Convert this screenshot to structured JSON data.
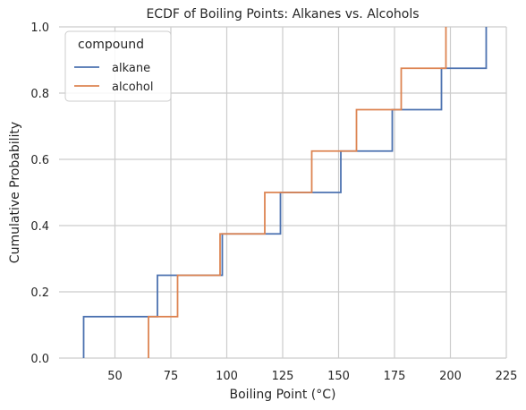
{
  "chart_data": {
    "type": "line",
    "subtype": "ecdf-step",
    "title": "ECDF of Boiling Points: Alkanes vs. Alcohols",
    "xlabel": "Boiling Point (°C)",
    "ylabel": "Cumulative Probability",
    "xlim": [
      25,
      225
    ],
    "ylim": [
      0,
      1
    ],
    "xticks": [
      50,
      75,
      100,
      125,
      150,
      175,
      200,
      225
    ],
    "yticks": [
      0.0,
      0.2,
      0.4,
      0.6,
      0.8,
      1.0
    ],
    "xtick_labels": [
      "50",
      "75",
      "100",
      "125",
      "150",
      "175",
      "200",
      "225"
    ],
    "ytick_labels": [
      "0.0",
      "0.2",
      "0.4",
      "0.6",
      "0.8",
      "1.0"
    ],
    "grid": true,
    "legend": {
      "title": "compound",
      "position": "upper-left"
    },
    "series": [
      {
        "name": "alkane",
        "color": "#4c72b0",
        "x": [
          36,
          69,
          98,
          124,
          151,
          174,
          196,
          216
        ],
        "y": [
          0.125,
          0.25,
          0.375,
          0.5,
          0.625,
          0.75,
          0.875,
          1.0
        ]
      },
      {
        "name": "alcohol",
        "color": "#dd8452",
        "x": [
          65,
          78,
          97,
          117,
          138,
          158,
          178,
          198
        ],
        "y": [
          0.125,
          0.25,
          0.375,
          0.5,
          0.625,
          0.75,
          0.875,
          1.0
        ]
      }
    ]
  }
}
